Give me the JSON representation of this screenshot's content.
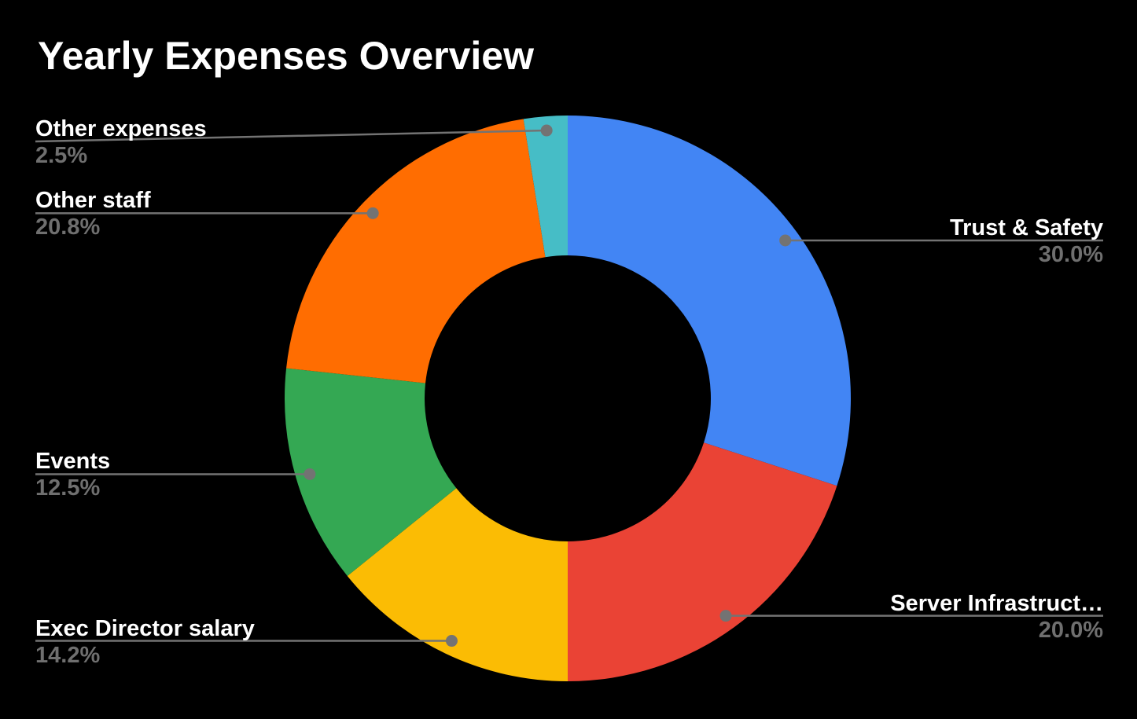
{
  "title": "Yearly Expenses Overview",
  "chart_data": {
    "type": "pie",
    "subtype": "donut",
    "title": "Yearly Expenses Overview",
    "donut_hole_ratio": 0.505,
    "legend_position": "labeled-callouts",
    "grid": false,
    "style": {
      "background": "#000000",
      "title_color": "#ffffff",
      "label_color": "#ffffff",
      "percent_color": "#6f6f6f",
      "leader_line_color": "#737373",
      "leader_dot_color": "#737373"
    },
    "slices": [
      {
        "label": "Trust & Safety",
        "value": 30.0,
        "pct_label": "30.0%",
        "color": "#4285F4"
      },
      {
        "label": "Server Infrastruct…",
        "value": 20.0,
        "pct_label": "20.0%",
        "color": "#EA4335"
      },
      {
        "label": "Exec Director salary",
        "value": 14.2,
        "pct_label": "14.2%",
        "color": "#FBBC04"
      },
      {
        "label": "Events",
        "value": 12.5,
        "pct_label": "12.5%",
        "color": "#34A853"
      },
      {
        "label": "Other staff",
        "value": 20.8,
        "pct_label": "20.8%",
        "color": "#FF6D01"
      },
      {
        "label": "Other expenses",
        "value": 2.5,
        "pct_label": "2.5%",
        "color": "#46BDC6"
      }
    ]
  }
}
